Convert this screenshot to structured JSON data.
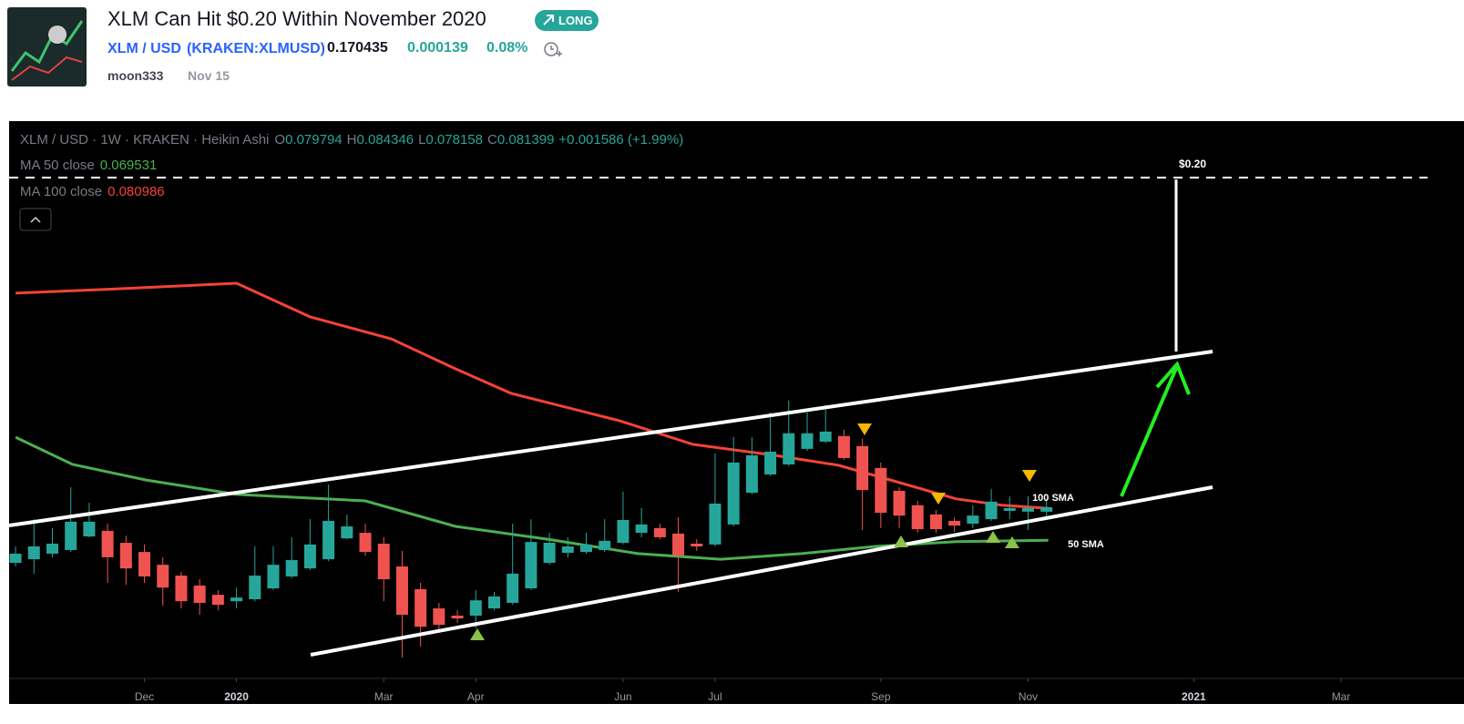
{
  "header": {
    "title": "XLM Can Hit $0.20 Within November 2020",
    "badge": "LONG",
    "symbol": "XLM / USD",
    "exchange": "(KRAKEN:XLMUSD)",
    "price": "0.170435",
    "change": "0.000139",
    "change_pct": "0.08%",
    "author": "moon333",
    "date": "Nov 15"
  },
  "chart_data": {
    "type": "candlestick",
    "title": "XLM / USD · 1W · KRAKEN · Heikin Ashi",
    "ohlc_labels": [
      "O",
      "H",
      "L",
      "C"
    ],
    "change_label": "+0.001586 (+1.99%)",
    "open": [
      0.0614,
      0.0627,
      0.0647,
      0.066,
      0.0709,
      0.0729,
      0.0686,
      0.0653,
      0.0607,
      0.0568,
      0.0532,
      0.0499,
      0.0476,
      0.0483,
      0.0522,
      0.0565,
      0.0594,
      0.0627,
      0.0702,
      0.0722,
      0.0683,
      0.0601,
      0.0519,
      0.045,
      0.0424,
      0.0424,
      0.045,
      0.047,
      0.0522,
      0.0614,
      0.065,
      0.0653,
      0.066,
      0.0686,
      0.0722,
      0.0739,
      0.0719,
      0.0683,
      0.068,
      0.0752,
      0.0866,
      0.0932,
      0.0968,
      0.1024,
      0.105,
      0.107,
      0.1034,
      0.0955,
      0.0873,
      0.0821,
      0.0788,
      0.0765,
      0.0755,
      0.0771,
      0.0801,
      0.0798,
      0.079794
    ],
    "high": [
      0.0673,
      0.0771,
      0.0739,
      0.0886,
      0.083,
      0.0755,
      0.0712,
      0.068,
      0.0634,
      0.0581,
      0.0555,
      0.0516,
      0.0525,
      0.0673,
      0.0673,
      0.0706,
      0.0771,
      0.0896,
      0.0788,
      0.0755,
      0.0706,
      0.0657,
      0.0542,
      0.047,
      0.0443,
      0.0516,
      0.0509,
      0.0755,
      0.0771,
      0.0722,
      0.0706,
      0.0722,
      0.0771,
      0.087,
      0.0811,
      0.0755,
      0.0778,
      0.0699,
      0.1008,
      0.1067,
      0.1067,
      0.1155,
      0.1198,
      0.1155,
      0.1181,
      0.1093,
      0.106,
      0.0975,
      0.0886,
      0.0837,
      0.0804,
      0.0778,
      0.0821,
      0.088,
      0.0853,
      0.0853,
      0.084346
    ],
    "low": [
      0.0601,
      0.0575,
      0.0634,
      0.0653,
      0.0706,
      0.0542,
      0.0535,
      0.0542,
      0.046,
      0.045,
      0.0427,
      0.0443,
      0.045,
      0.0476,
      0.0516,
      0.0558,
      0.0588,
      0.062,
      0.0699,
      0.064,
      0.0476,
      0.0273,
      0.0312,
      0.0371,
      0.0397,
      0.0378,
      0.0443,
      0.0463,
      0.0516,
      0.0607,
      0.0634,
      0.0647,
      0.0653,
      0.068,
      0.0706,
      0.0699,
      0.0509,
      0.0657,
      0.0673,
      0.0745,
      0.086,
      0.0926,
      0.0962,
      0.1017,
      0.1044,
      0.0985,
      0.0732,
      0.0739,
      0.0739,
      0.0722,
      0.0722,
      0.0725,
      0.0739,
      0.0765,
      0.0771,
      0.0732,
      0.078158
    ],
    "close": [
      0.0647,
      0.0673,
      0.0683,
      0.0762,
      0.0762,
      0.0634,
      0.0594,
      0.0565,
      0.0525,
      0.0476,
      0.047,
      0.0463,
      0.0489,
      0.0568,
      0.0607,
      0.0624,
      0.068,
      0.0765,
      0.0745,
      0.0653,
      0.0555,
      0.0427,
      0.0384,
      0.0391,
      0.0414,
      0.0479,
      0.0493,
      0.0575,
      0.0689,
      0.0686,
      0.0673,
      0.068,
      0.0693,
      0.0768,
      0.0752,
      0.0706,
      0.064,
      0.0673,
      0.0827,
      0.0975,
      0.1001,
      0.1014,
      0.108,
      0.108,
      0.1086,
      0.0991,
      0.0876,
      0.0794,
      0.0784,
      0.0735,
      0.0735,
      0.0748,
      0.0784,
      0.0834,
      0.0811,
      0.0811,
      0.081399
    ],
    "up_color": "#26a69a",
    "down_color": "#ef5350",
    "xlim": [
      -0.35,
      76.7
    ],
    "ylim": [
      0.0198,
      0.2203
    ],
    "xticks": [
      {
        "value": 7,
        "label": "Dec"
      },
      {
        "value": 12,
        "label": "2020"
      },
      {
        "value": 20,
        "label": "Mar"
      },
      {
        "value": 25,
        "label": "Apr"
      },
      {
        "value": 33,
        "label": "Jun"
      },
      {
        "value": 38,
        "label": "Jul"
      },
      {
        "value": 47,
        "label": "Sep"
      },
      {
        "value": 55,
        "label": "Nov"
      },
      {
        "value": 64,
        "label": "2021"
      },
      {
        "value": 72,
        "label": "Mar"
      }
    ],
    "lines": [
      {
        "name": "MA 50 close",
        "color": "#4caf50",
        "last": 0.069531,
        "x": [
          0,
          3.1,
          7.1,
          12,
          19,
          23.9,
          28.9,
          33.8,
          38.3,
          42.7,
          46.7,
          51.1,
          56.1
        ],
        "values": [
          0.1066,
          0.0968,
          0.0912,
          0.086,
          0.0837,
          0.0745,
          0.0699,
          0.0647,
          0.0627,
          0.0647,
          0.0673,
          0.069,
          0.0695
        ]
      },
      {
        "name": "MA 100 close",
        "color": "#f44336",
        "last": 0.080986,
        "x": [
          0,
          5.6,
          12,
          16,
          20.4,
          23.9,
          26.9,
          32.8,
          36.8,
          41.2,
          44.7,
          48.2,
          51.1,
          53.6,
          56.1
        ],
        "values": [
          0.1584,
          0.16,
          0.162,
          0.1499,
          0.142,
          0.1312,
          0.1224,
          0.1125,
          0.104,
          0.1001,
          0.0965,
          0.0899,
          0.0844,
          0.0821,
          0.081
        ]
      }
    ],
    "annotations": [
      "$0.20",
      "100 SMA",
      "50 SMA"
    ]
  }
}
